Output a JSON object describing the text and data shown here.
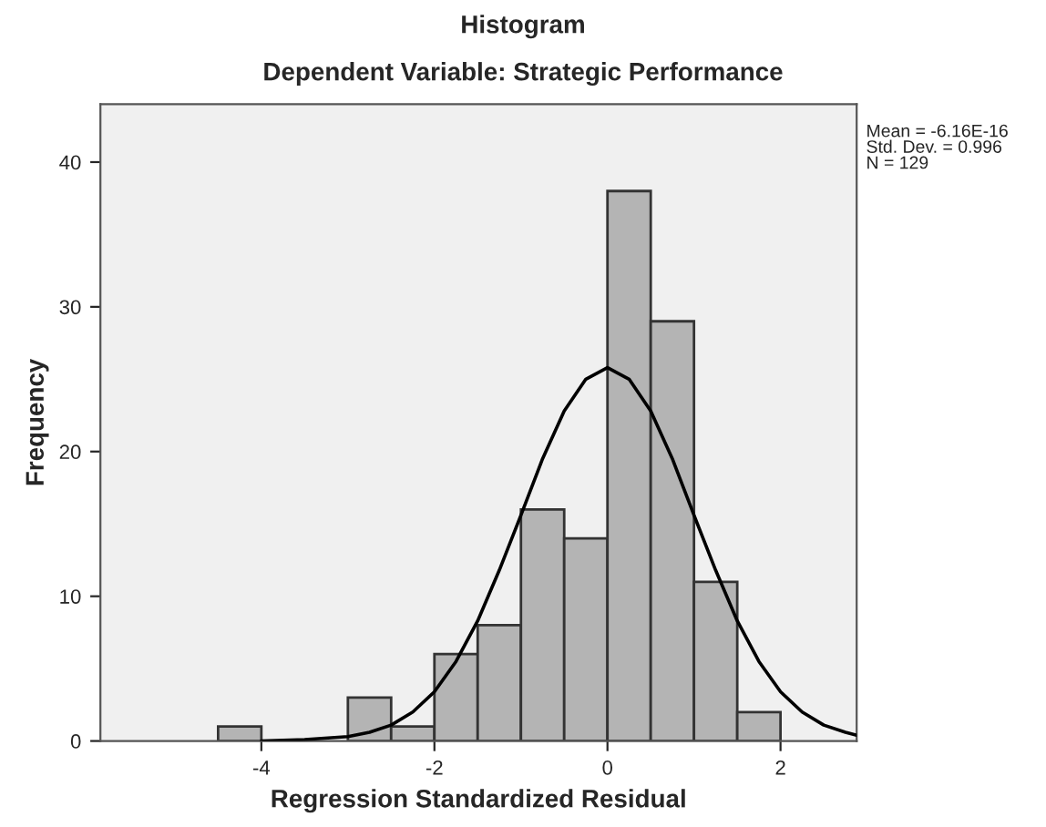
{
  "chart_data": {
    "type": "histogram",
    "title": "Histogram",
    "subtitle": "Dependent Variable: Strategic Performance",
    "xlabel": "Regression Standardized Residual",
    "ylabel": "Frequency",
    "bins": [
      -4.5,
      -4,
      -3.5,
      -3,
      -2.5,
      -2,
      -1.5,
      -1,
      -0.5,
      0,
      0.5,
      1,
      1.5,
      2
    ],
    "values": [
      1,
      0,
      0,
      3,
      1,
      6,
      8,
      16,
      14,
      38,
      29,
      11,
      2
    ],
    "color": "#b4b4b4",
    "series": [
      {
        "type": "line",
        "color": "#000000",
        "x": [
          -4,
          -3.5,
          -3,
          -2.75,
          -2.5,
          -2.25,
          -2,
          -1.75,
          -1.5,
          -1.25,
          -1,
          -0.75,
          -0.5,
          -0.25,
          0,
          0.25,
          0.5,
          0.75,
          1,
          1.25,
          1.5,
          1.75,
          2,
          2.25,
          2.5,
          2.75,
          2.88
        ],
        "values": [
          0,
          0.1,
          0.3,
          0.6,
          1.1,
          2.0,
          3.4,
          5.5,
          8.3,
          11.8,
          15.6,
          19.5,
          22.8,
          25.0,
          25.8,
          25.0,
          22.8,
          19.5,
          15.6,
          11.8,
          8.3,
          5.5,
          3.4,
          2.0,
          1.1,
          0.6,
          0.4
        ]
      }
    ],
    "xlim": [
      -5.86,
      2.88
    ],
    "xticks": [
      -4,
      -2,
      0,
      2
    ],
    "ylim": [
      0,
      44
    ],
    "yticks": [
      0,
      10,
      20,
      30,
      40
    ],
    "grid": false,
    "annotations": [
      "Mean = -6.16E-16\nStd. Dev. = 0.996\nN = 129"
    ]
  }
}
